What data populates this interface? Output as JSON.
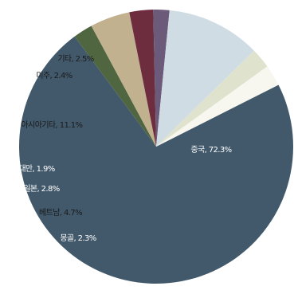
{
  "chart_data": {
    "type": "pie",
    "title": "",
    "start_angle_deg": 63.2,
    "slices": [
      {
        "label": "중국",
        "value": 72.3,
        "display": "중국, 72.3%",
        "color": "#42596b",
        "label_color": "#ffffff"
      },
      {
        "label": "몽골",
        "value": 2.3,
        "display": "몽골, 2.3%",
        "color": "#4f6640",
        "label_color": "#ffffff"
      },
      {
        "label": "베트남",
        "value": 4.7,
        "display": "베트남, 4.7%",
        "color": "#c2b18f",
        "label_color": "#1a1a1a"
      },
      {
        "label": "일본",
        "value": 2.8,
        "display": "일본, 2.8%",
        "color": "#6d2d3f",
        "label_color": "#ffffff"
      },
      {
        "label": "대만",
        "value": 1.9,
        "display": "대만, 1.9%",
        "color": "#6b5a7a",
        "label_color": "#ffffff"
      },
      {
        "label": "아시아기타",
        "value": 11.1,
        "display": "아시아기타, 11.1%",
        "color": "#d0dce4",
        "label_color": "#1a1a1a"
      },
      {
        "label": "미주",
        "value": 2.4,
        "display": "미주, 2.4%",
        "color": "#dfe3ce",
        "label_color": "#1a1a1a"
      },
      {
        "label": "기타",
        "value": 2.5,
        "display": "기타, 2.5%",
        "color": "#f7f7ef",
        "label_color": "#1a1a1a"
      }
    ]
  }
}
